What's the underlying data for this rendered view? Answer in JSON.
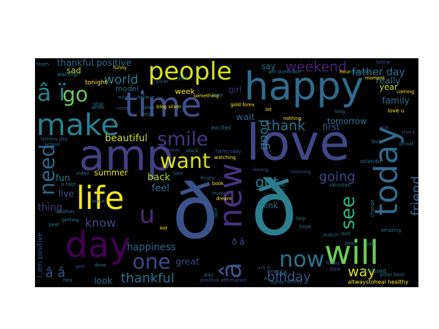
{
  "wordcloud": {
    "words": [
      {
        "text": "ð",
        "color": "#3b538a"
      },
      {
        "text": "ð",
        "color": "#2c7f8e"
      },
      {
        "text": "love",
        "color": "#3f4788"
      },
      {
        "text": "amp",
        "color": "#433d84"
      },
      {
        "text": "happy",
        "color": "#2f6b8e"
      },
      {
        "text": "time",
        "color": "#3c4f8a"
      },
      {
        "text": "day",
        "color": "#440154"
      },
      {
        "text": "make",
        "color": "#2a7d8e"
      },
      {
        "text": "today",
        "color": "#2f6a8d"
      },
      {
        "text": "new",
        "color": "#46307e"
      },
      {
        "text": "life",
        "color": "#f0e51c"
      },
      {
        "text": "will",
        "color": "#6bcd59"
      },
      {
        "text": "people",
        "color": "#d8e219"
      },
      {
        "text": "â ï",
        "color": "#25848d"
      },
      {
        "text": "â",
        "color": "#3b528b"
      },
      {
        "text": "want",
        "color": "#d5e21a"
      },
      {
        "text": "smile",
        "color": "#443983"
      },
      {
        "text": "need",
        "color": "#31688e"
      },
      {
        "text": "go",
        "color": "#6ccd5a"
      },
      {
        "text": "u",
        "color": "#482878"
      },
      {
        "text": "see",
        "color": "#2db27d"
      },
      {
        "text": "now",
        "color": "#2c718e"
      },
      {
        "text": "one",
        "color": "#3f4889"
      },
      {
        "text": "world",
        "color": "#27808e"
      },
      {
        "text": "weekend",
        "color": "#482173"
      },
      {
        "text": "thank",
        "color": "#2e6f8e"
      },
      {
        "text": "friend",
        "color": "#31678e"
      },
      {
        "text": "going",
        "color": "#3f4788"
      },
      {
        "text": "got",
        "color": "#26828e"
      },
      {
        "text": "know",
        "color": "#3f4789"
      },
      {
        "text": "thankful",
        "color": "#2c738e"
      },
      {
        "text": "way",
        "color": "#dde318"
      },
      {
        "text": "bihday",
        "color": "#3b528b"
      },
      {
        "text": "good",
        "color": "#2a788e"
      },
      {
        "text": "â â",
        "color": "#3b528b"
      },
      {
        "text": "father day",
        "color": "#2c728e"
      },
      {
        "text": "thankful positive",
        "color": "#2e6e8e"
      },
      {
        "text": "beautiful",
        "color": "#cde11d"
      },
      {
        "text": "happiness",
        "color": "#31688e"
      },
      {
        "text": "back",
        "color": "#b5de2b"
      },
      {
        "text": "feel",
        "color": "#2c738e"
      },
      {
        "text": "fun",
        "color": "#26828e"
      },
      {
        "text": "live",
        "color": "#3b528b"
      },
      {
        "text": "thing",
        "color": "#443a83"
      },
      {
        "text": "summer",
        "color": "#e5e419"
      },
      {
        "text": "great",
        "color": "#3f4788"
      },
      {
        "text": "look",
        "color": "#31688e"
      },
      {
        "text": "really",
        "color": "#2c728e"
      },
      {
        "text": "family",
        "color": "#2c728e"
      },
      {
        "text": "year",
        "color": "#c2df23"
      },
      {
        "text": "tomorrow",
        "color": "#2c728e"
      },
      {
        "text": "first",
        "color": "#3b528b"
      },
      {
        "text": "wait",
        "color": "#31688e"
      },
      {
        "text": "think",
        "color": "#2c728e"
      },
      {
        "text": "sad",
        "color": "#b5de2b"
      },
      {
        "text": "girl",
        "color": "#482878"
      },
      {
        "text": "say",
        "color": "#2c728e"
      },
      {
        "text": "week",
        "color": "#fde725"
      },
      {
        "text": "model",
        "color": "#2a788e"
      },
      {
        "text": "i_am positive",
        "color": "#3b528b"
      },
      {
        "text": "blessed",
        "color": "#2a788e"
      },
      {
        "text": "altwaystoheal healthy",
        "color": "#fde725"
      },
      {
        "text": "positive affirmation",
        "color": "#3b528b"
      },
      {
        "text": "tonight",
        "color": "#fde725"
      },
      {
        "text": "waiting",
        "color": "#2c728e"
      },
      {
        "text": "team",
        "color": "#2a788e"
      },
      {
        "text": "funny",
        "color": "#fde725"
      },
      {
        "text": "gold forex",
        "color": "#fde725"
      },
      {
        "text": "blog silver",
        "color": "#fde725"
      },
      {
        "text": "orlando",
        "color": "#2c728e"
      },
      {
        "text": "love u",
        "color": "#fde725"
      },
      {
        "text": "saturday",
        "color": "#2c728e"
      },
      {
        "text": "excited",
        "color": "#2c728e"
      },
      {
        "text": "nothing",
        "color": "#fde725"
      },
      {
        "text": "selfie",
        "color": "#2a788e"
      },
      {
        "text": "morning",
        "color": "#3b528b"
      },
      {
        "text": "feeling",
        "color": "#3b528b"
      },
      {
        "text": "music",
        "color": "#2c728e"
      },
      {
        "text": "dream",
        "color": "#fde725"
      },
      {
        "text": "friday",
        "color": "#31688e"
      },
      {
        "text": "holiday",
        "color": "#31688e"
      },
      {
        "text": "home",
        "color": "#2c728e"
      },
      {
        "text": "little",
        "color": "#3b528b"
      },
      {
        "text": "done",
        "color": "#2a788e"
      },
      {
        "text": "pay",
        "color": "#2a788e"
      },
      {
        "text": "getting",
        "color": "#26828e"
      },
      {
        "text": "leave",
        "color": "#2c728e"
      },
      {
        "text": "kid",
        "color": "#fde725"
      },
      {
        "text": "hope",
        "color": "#2a788e"
      },
      {
        "text": "help",
        "color": "#2c728e"
      },
      {
        "text": "job",
        "color": "#2a788e"
      },
      {
        "text": "dad",
        "color": "#2c728e"
      },
      {
        "text": "match",
        "color": "#31688e"
      },
      {
        "text": "amazing",
        "color": "#2c728e"
      },
      {
        "text": "proud",
        "color": "#2c728e"
      },
      {
        "text": "check",
        "color": "#3b528b"
      },
      {
        "text": "coming",
        "color": "#fde725"
      },
      {
        "text": "follow",
        "color": "#3b528b"
      },
      {
        "text": "moment",
        "color": "#fde725"
      },
      {
        "text": "via",
        "color": "#3b528b"
      },
      {
        "text": "long",
        "color": "#2c728e"
      },
      {
        "text": "let",
        "color": "#fde725"
      },
      {
        "text": "gold",
        "color": "#2c728e"
      },
      {
        "text": "silver",
        "color": "#31688e"
      },
      {
        "text": "something",
        "color": "#fde725"
      },
      {
        "text": "school",
        "color": "#31688e"
      },
      {
        "text": "fathers day",
        "color": "#31688e"
      },
      {
        "text": "sunday",
        "color": "#3b528b"
      },
      {
        "text": "black",
        "color": "#2c728e"
      },
      {
        "text": "fathersday",
        "color": "#3b528b"
      },
      {
        "text": "book",
        "color": "#fde725"
      },
      {
        "text": "watching",
        "color": "#fde725"
      },
      {
        "text": "better",
        "color": "#2c728e"
      },
      {
        "text": "nice",
        "color": "#2c728e"
      },
      {
        "text": "white",
        "color": "#2c728e"
      },
      {
        "text": "stop",
        "color": "#2c728e"
      },
      {
        "text": "keep",
        "color": "#2a788e"
      },
      {
        "text": "enjoy",
        "color": "#2c728e"
      },
      {
        "text": "believe",
        "color": "#2c728e"
      },
      {
        "text": "food",
        "color": "#2c728e"
      },
      {
        "text": "come",
        "color": "#31688e"
      },
      {
        "text": "take",
        "color": "#31688e"
      },
      {
        "text": "another",
        "color": "#2c728e"
      },
      {
        "text": "best",
        "color": "#2a788e"
      },
      {
        "text": "god",
        "color": "#3b528b"
      },
      {
        "text": "video",
        "color": "#2c728e"
      },
      {
        "text": "u take",
        "color": "#2c728e"
      },
      {
        "text": "ð",
        "color": "#2c728e"
      },
      {
        "text": "ð â",
        "color": "#3b528b"
      },
      {
        "text": "urð ð",
        "color": "#3b528b"
      },
      {
        "text": "america",
        "color": "#31688e"
      },
      {
        "text": "polar bear",
        "color": "#2a788e"
      },
      {
        "text": "find",
        "color": "#2c728e"
      },
      {
        "text": "will dominate",
        "color": "#2c728e"
      },
      {
        "text": "hour",
        "color": "#fde725"
      },
      {
        "text": "monday",
        "color": "#2c728e"
      },
      {
        "text": "word",
        "color": "#2c728e"
      },
      {
        "text": "face",
        "color": "#2c728e"
      },
      {
        "text": "change",
        "color": "#2a788e"
      },
      {
        "text": "hea",
        "color": "#2c728e"
      },
      {
        "text": "finally",
        "color": "#31688e"
      },
      {
        "text": "bear",
        "color": "#2c728e"
      }
    ]
  }
}
